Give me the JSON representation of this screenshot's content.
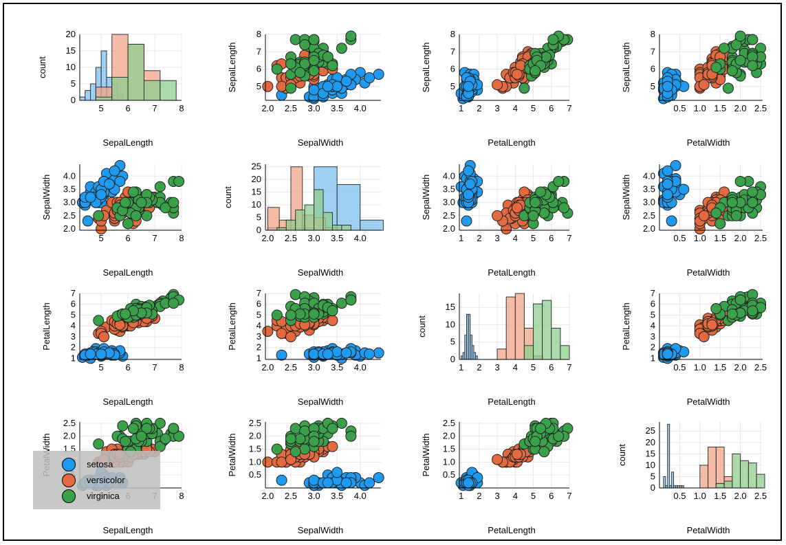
{
  "colors": {
    "setosa": "#1e9bf0",
    "versicolor": "#e36a3f",
    "virginica": "#3aa04a",
    "hist_setosa": "#7ec0ef",
    "hist_versicolor": "#f0a58a",
    "hist_virginica": "#8fcf8f",
    "hist_outline": "#333333"
  },
  "legend": {
    "items": [
      {
        "label": "setosa",
        "color_key": "setosa"
      },
      {
        "label": "versicolor",
        "color_key": "versicolor"
      },
      {
        "label": "virginica",
        "color_key": "virginica"
      }
    ],
    "placement": "bottom-left of panel row 4 col 1"
  },
  "chart_data": {
    "type": "scatter",
    "layout": "4x4 pairplot",
    "variables": [
      "SepalLength",
      "SepalWidth",
      "PetalLength",
      "PetalWidth"
    ],
    "grid": true,
    "species": [
      "setosa",
      "versicolor",
      "virginica"
    ],
    "axes": {
      "SepalLength": {
        "range": [
          4.2,
          8.0
        ],
        "ticks": [
          "5",
          "6",
          "7",
          "8"
        ],
        "tick_values": [
          5,
          6,
          7,
          8
        ]
      },
      "SepalWidth": {
        "range": [
          1.95,
          4.45
        ],
        "ticks": [
          "2.0",
          "2.5",
          "3.0",
          "3.5",
          "4.0"
        ],
        "tick_values": [
          2.0,
          2.5,
          3.0,
          3.5,
          4.0
        ]
      },
      "PetalLength": {
        "range": [
          0.9,
          7.0
        ],
        "ticks": [
          "1",
          "2",
          "3",
          "4",
          "5",
          "6",
          "7"
        ],
        "tick_values": [
          1,
          2,
          3,
          4,
          5,
          6,
          7
        ]
      },
      "PetalWidth": {
        "range": [
          0.0,
          2.55
        ],
        "ticks": [
          "0.5",
          "1.0",
          "1.5",
          "2.0",
          "2.5"
        ],
        "tick_values": [
          0.5,
          1.0,
          1.5,
          2.0,
          2.5
        ]
      }
    },
    "y_tick_overrides": {
      "SepalLength": {
        "ticks": [
          "5",
          "6",
          "7",
          "8"
        ],
        "tick_values": [
          5,
          6,
          7,
          8
        ],
        "range": [
          4.2,
          8.0
        ]
      },
      "SepalWidth": {
        "ticks": [
          "2.0",
          "2.5",
          "3.0",
          "3.5",
          "4.0"
        ],
        "tick_values": [
          2.0,
          2.5,
          3.0,
          3.5,
          4.0
        ],
        "range": [
          1.95,
          4.45
        ]
      },
      "PetalLength": {
        "ticks": [
          "1",
          "2",
          "3",
          "4",
          "5",
          "6",
          "7"
        ],
        "tick_values": [
          1,
          2,
          3,
          4,
          5,
          6,
          7
        ],
        "range": [
          0.9,
          7.0
        ]
      },
      "PetalWidth": {
        "ticks": [
          "0.5",
          "1.0",
          "1.5",
          "2.0",
          "2.5"
        ],
        "tick_values": [
          0.5,
          1.0,
          1.5,
          2.0,
          2.5
        ],
        "range": [
          0.0,
          2.55
        ]
      }
    },
    "count_axes": {
      "SepalLength": {
        "ticks": [
          "0",
          "5",
          "10",
          "15",
          "20"
        ],
        "tick_values": [
          0,
          5,
          10,
          15,
          20
        ],
        "range": [
          0,
          20
        ]
      },
      "SepalWidth": {
        "ticks": [
          "0",
          "5",
          "10",
          "15",
          "20",
          "25"
        ],
        "tick_values": [
          0,
          5,
          10,
          15,
          20,
          25
        ],
        "range": [
          0,
          26
        ]
      },
      "PetalLength": {
        "ticks": [
          "0",
          "5",
          "10",
          "15"
        ],
        "tick_values": [
          0,
          5,
          10,
          15
        ],
        "range": [
          0,
          19
        ]
      },
      "PetalWidth": {
        "ticks": [
          "0",
          "5",
          "10",
          "15",
          "20",
          "25"
        ],
        "tick_values": [
          0,
          5,
          10,
          15,
          20,
          25
        ],
        "range": [
          0,
          29
        ]
      }
    },
    "count_label": "count",
    "histograms": {
      "SepalLength": {
        "setosa": {
          "bins": [
            4.2,
            4.4,
            4.6,
            4.8,
            5.0,
            5.2,
            5.4,
            5.6,
            5.8
          ],
          "counts": [
            1,
            3,
            5,
            10,
            15,
            7,
            5,
            2
          ]
        },
        "versicolor": {
          "bins": [
            4.8,
            5.4,
            6.0,
            6.6,
            7.2
          ],
          "counts": [
            4,
            20,
            17,
            9
          ]
        },
        "virginica": {
          "bins": [
            4.8,
            5.4,
            6.0,
            6.6,
            7.2,
            7.8
          ],
          "counts": [
            1,
            7,
            17,
            6,
            6
          ]
        }
      },
      "SepalWidth": {
        "setosa": {
          "bins": [
            2.0,
            2.5,
            3.0,
            3.5,
            4.0,
            4.5
          ],
          "counts": [
            1,
            1,
            25,
            18,
            4
          ]
        },
        "versicolor": {
          "bins": [
            2.0,
            2.25,
            2.5,
            2.75,
            3.0,
            3.25,
            3.5
          ],
          "counts": [
            9,
            4,
            25,
            6,
            5,
            1
          ]
        },
        "virginica": {
          "bins": [
            2.2,
            2.4,
            2.6,
            2.8,
            3.0,
            3.2,
            3.4,
            3.6,
            3.8
          ],
          "counts": [
            1,
            4,
            8,
            10,
            16,
            7,
            2,
            2
          ]
        }
      },
      "PetalLength": {
        "setosa": {
          "bins": [
            1.0,
            1.1,
            1.2,
            1.3,
            1.4,
            1.5,
            1.6,
            1.7,
            1.8,
            1.9
          ],
          "counts": [
            1,
            2,
            7,
            13,
            13,
            7,
            4,
            2,
            1
          ]
        },
        "versicolor": {
          "bins": [
            3.0,
            3.5,
            4.0,
            4.5,
            5.0,
            5.5
          ],
          "counts": [
            3,
            18,
            19,
            9,
            1
          ]
        },
        "virginica": {
          "bins": [
            4.5,
            5.0,
            5.5,
            6.0,
            6.5,
            7.0
          ],
          "counts": [
            4,
            16,
            17,
            9,
            4
          ]
        }
      },
      "PetalWidth": {
        "setosa": {
          "bins": [
            0.1,
            0.15,
            0.2,
            0.25,
            0.3,
            0.35,
            0.4,
            0.45,
            0.5,
            0.55,
            0.6
          ],
          "counts": [
            5,
            1,
            28,
            1,
            7,
            1,
            1,
            1,
            1,
            1
          ]
        },
        "versicolor": {
          "bins": [
            1.0,
            1.2,
            1.4,
            1.6,
            1.8
          ],
          "counts": [
            10,
            18,
            18,
            5
          ]
        },
        "virginica": {
          "bins": [
            1.4,
            1.6,
            1.8,
            2.0,
            2.2,
            2.4,
            2.6
          ],
          "counts": [
            2,
            3,
            15,
            12,
            11,
            6
          ]
        }
      }
    },
    "scatter_points": {
      "setosa": {
        "SepalLength": [
          5.1,
          4.9,
          4.7,
          4.6,
          5.0,
          5.4,
          4.6,
          5.0,
          4.4,
          4.9,
          5.4,
          4.8,
          4.8,
          4.3,
          5.8,
          5.7,
          5.4,
          5.1,
          5.7,
          5.1,
          5.4,
          5.1,
          4.6,
          5.1,
          4.8,
          5.0,
          5.0,
          5.2,
          5.2,
          4.7,
          4.8,
          5.4,
          5.2,
          5.5,
          4.9,
          5.0,
          5.5,
          4.9,
          4.4,
          5.1,
          5.0,
          4.5,
          4.4,
          5.0,
          5.1,
          4.8,
          5.1,
          4.6,
          5.3,
          5.0
        ],
        "SepalWidth": [
          3.5,
          3.0,
          3.2,
          3.1,
          3.6,
          3.9,
          3.4,
          3.4,
          2.9,
          3.1,
          3.7,
          3.4,
          3.0,
          3.0,
          4.0,
          4.4,
          3.9,
          3.5,
          3.8,
          3.8,
          3.4,
          3.7,
          3.6,
          3.3,
          3.4,
          3.0,
          3.4,
          3.5,
          3.4,
          3.2,
          3.1,
          3.4,
          4.1,
          4.2,
          3.1,
          3.2,
          3.5,
          3.6,
          3.0,
          3.4,
          3.5,
          2.3,
          3.2,
          3.5,
          3.8,
          3.0,
          3.8,
          3.2,
          3.7,
          3.3
        ],
        "PetalLength": [
          1.4,
          1.4,
          1.3,
          1.5,
          1.4,
          1.7,
          1.4,
          1.5,
          1.4,
          1.5,
          1.5,
          1.6,
          1.4,
          1.1,
          1.2,
          1.5,
          1.3,
          1.4,
          1.7,
          1.5,
          1.7,
          1.5,
          1.0,
          1.7,
          1.9,
          1.6,
          1.6,
          1.5,
          1.4,
          1.6,
          1.6,
          1.5,
          1.5,
          1.4,
          1.5,
          1.2,
          1.3,
          1.4,
          1.3,
          1.5,
          1.3,
          1.3,
          1.3,
          1.6,
          1.9,
          1.4,
          1.6,
          1.4,
          1.5,
          1.4
        ],
        "PetalWidth": [
          0.2,
          0.2,
          0.2,
          0.2,
          0.2,
          0.4,
          0.3,
          0.2,
          0.2,
          0.1,
          0.2,
          0.2,
          0.1,
          0.1,
          0.2,
          0.4,
          0.4,
          0.3,
          0.3,
          0.3,
          0.2,
          0.4,
          0.2,
          0.5,
          0.2,
          0.2,
          0.4,
          0.2,
          0.2,
          0.2,
          0.2,
          0.4,
          0.1,
          0.2,
          0.2,
          0.2,
          0.2,
          0.1,
          0.2,
          0.2,
          0.3,
          0.3,
          0.2,
          0.6,
          0.4,
          0.3,
          0.2,
          0.2,
          0.2,
          0.2
        ]
      },
      "versicolor": {
        "SepalLength": [
          7.0,
          6.4,
          6.9,
          5.5,
          6.5,
          5.7,
          6.3,
          4.9,
          6.6,
          5.2,
          5.0,
          5.9,
          6.0,
          6.1,
          5.6,
          6.7,
          5.6,
          5.8,
          6.2,
          5.6,
          5.9,
          6.1,
          6.3,
          6.1,
          6.4,
          6.6,
          6.8,
          6.7,
          6.0,
          5.7,
          5.5,
          5.5,
          5.8,
          6.0,
          5.4,
          6.0,
          6.7,
          6.3,
          5.6,
          5.5,
          5.5,
          6.1,
          5.8,
          5.0,
          5.6,
          5.7,
          5.7,
          6.2,
          5.1,
          5.7
        ],
        "SepalWidth": [
          3.2,
          3.2,
          3.1,
          2.3,
          2.8,
          2.8,
          3.3,
          2.4,
          2.9,
          2.7,
          2.0,
          3.0,
          2.2,
          2.9,
          2.9,
          3.1,
          3.0,
          2.7,
          2.2,
          2.5,
          3.2,
          2.8,
          2.5,
          2.8,
          2.9,
          3.0,
          2.8,
          3.0,
          2.9,
          2.6,
          2.4,
          2.4,
          2.7,
          2.7,
          3.0,
          3.4,
          3.1,
          2.3,
          3.0,
          2.5,
          2.6,
          3.0,
          2.6,
          2.3,
          2.7,
          3.0,
          2.9,
          2.9,
          2.5,
          2.8
        ],
        "PetalLength": [
          4.7,
          4.5,
          4.9,
          4.0,
          4.6,
          4.5,
          4.7,
          3.3,
          4.6,
          3.9,
          3.5,
          4.2,
          4.0,
          4.7,
          3.6,
          4.4,
          4.5,
          4.1,
          4.5,
          3.9,
          4.8,
          4.0,
          4.9,
          4.7,
          4.3,
          4.4,
          4.8,
          5.0,
          4.5,
          3.5,
          3.8,
          3.7,
          3.9,
          5.1,
          4.5,
          4.5,
          4.7,
          4.4,
          4.1,
          4.0,
          4.4,
          4.6,
          4.0,
          3.3,
          4.2,
          4.2,
          4.2,
          4.3,
          3.0,
          4.1
        ],
        "PetalWidth": [
          1.4,
          1.5,
          1.5,
          1.3,
          1.5,
          1.3,
          1.6,
          1.0,
          1.3,
          1.4,
          1.0,
          1.5,
          1.0,
          1.4,
          1.3,
          1.4,
          1.5,
          1.0,
          1.5,
          1.1,
          1.8,
          1.3,
          1.5,
          1.2,
          1.3,
          1.4,
          1.4,
          1.7,
          1.5,
          1.0,
          1.1,
          1.0,
          1.2,
          1.6,
          1.5,
          1.6,
          1.5,
          1.3,
          1.3,
          1.3,
          1.2,
          1.4,
          1.2,
          1.0,
          1.3,
          1.2,
          1.3,
          1.3,
          1.1,
          1.3
        ]
      },
      "virginica": {
        "SepalLength": [
          6.3,
          5.8,
          7.1,
          6.3,
          6.5,
          7.6,
          4.9,
          7.3,
          6.7,
          7.2,
          6.5,
          6.4,
          6.8,
          5.7,
          5.8,
          6.4,
          6.5,
          7.7,
          7.7,
          6.0,
          6.9,
          5.6,
          7.7,
          6.3,
          6.7,
          7.2,
          6.2,
          6.1,
          6.4,
          7.2,
          7.4,
          7.9,
          6.4,
          6.3,
          6.1,
          7.7,
          6.3,
          6.4,
          6.0,
          6.9,
          6.7,
          6.9,
          5.8,
          6.8,
          6.7,
          6.7,
          6.3,
          6.5,
          6.2,
          5.9
        ],
        "SepalWidth": [
          3.3,
          2.7,
          3.0,
          2.9,
          3.0,
          3.0,
          2.5,
          2.9,
          2.5,
          3.6,
          3.2,
          2.7,
          3.0,
          2.5,
          2.8,
          3.2,
          3.0,
          3.8,
          2.6,
          2.2,
          3.2,
          2.8,
          2.8,
          2.7,
          3.3,
          3.2,
          2.8,
          3.0,
          2.8,
          3.0,
          2.8,
          3.8,
          2.8,
          2.8,
          2.6,
          3.0,
          3.4,
          3.1,
          3.0,
          3.1,
          3.1,
          3.1,
          2.7,
          3.2,
          3.3,
          3.0,
          2.5,
          3.0,
          3.4,
          3.0
        ],
        "PetalLength": [
          6.0,
          5.1,
          5.9,
          5.6,
          5.8,
          6.6,
          4.5,
          6.3,
          5.8,
          6.1,
          5.1,
          5.3,
          5.5,
          5.0,
          5.1,
          5.3,
          5.5,
          6.7,
          6.9,
          5.0,
          5.7,
          4.9,
          6.7,
          4.9,
          5.7,
          6.0,
          4.8,
          4.9,
          5.6,
          5.8,
          6.1,
          6.4,
          5.6,
          5.1,
          5.6,
          6.1,
          5.6,
          5.5,
          4.8,
          5.4,
          5.6,
          5.1,
          5.1,
          5.9,
          5.7,
          5.2,
          5.0,
          5.2,
          5.4,
          5.1
        ],
        "PetalWidth": [
          2.5,
          1.9,
          2.1,
          1.8,
          2.2,
          2.1,
          1.7,
          1.8,
          1.8,
          2.5,
          2.0,
          1.9,
          2.1,
          2.0,
          2.4,
          2.3,
          1.8,
          2.2,
          2.3,
          1.5,
          2.3,
          2.0,
          2.0,
          1.8,
          2.1,
          1.8,
          1.8,
          1.8,
          2.1,
          1.6,
          1.9,
          2.0,
          2.2,
          1.5,
          1.4,
          2.3,
          2.4,
          1.8,
          1.8,
          2.1,
          2.4,
          2.3,
          1.9,
          2.3,
          2.5,
          2.3,
          1.9,
          2.0,
          2.3,
          1.8
        ]
      }
    }
  }
}
